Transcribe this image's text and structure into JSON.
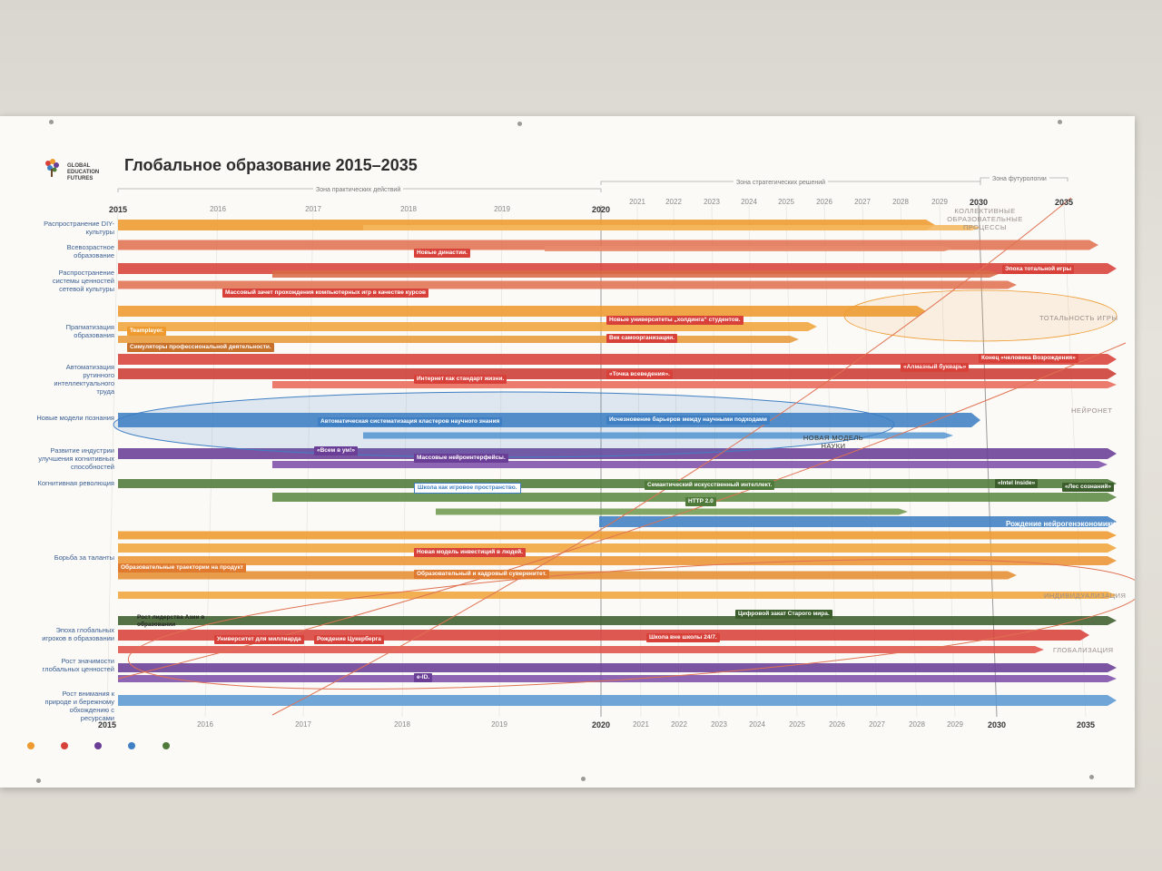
{
  "title": "Глобальное образование 2015–2035",
  "logo_text": [
    "GLOBAL",
    "EDUCATION",
    "FUTURES"
  ],
  "zones": [
    "Зона практических действий",
    "Зона стратегических решений",
    "Зона футурологии"
  ],
  "years_top": [
    "2015",
    "2016",
    "2017",
    "2018",
    "2019",
    "2020",
    "2021",
    "2022",
    "2023",
    "2024",
    "2025",
    "2026",
    "2027",
    "2028",
    "2029",
    "2030",
    "2035"
  ],
  "years_bottom": [
    "2015",
    "2016",
    "2017",
    "2018",
    "2019",
    "2020",
    "2021",
    "2022",
    "2023",
    "2024",
    "2025",
    "2026",
    "2027",
    "2028",
    "2029",
    "2030",
    "2035"
  ],
  "rows": [
    "Распространение DIY-культуры",
    "Всевозрастное образование",
    "Распространение системы ценностей сетевой культуры",
    "Прагматизация образования",
    "Автоматизация рутинного интеллектуального труда",
    "Новые модели познания",
    "Развитие индустрии улучшения когнитивных способностей",
    "Когнитивная революция",
    "Борьба за таланты",
    "Эпоха глобальных игроков в образовании",
    "Рост значимости глобальных ценностей",
    "Рост внимания к природе и бережному обхождению с ресурсами"
  ],
  "events": {
    "new_dinasties": "Новые династии.",
    "mass_gaming": "Массовый зачет прохождения компьютерных игр в качестве курсов",
    "teamplayer": "Teamplayer.",
    "simulators": "Симуляторы профессиональной деятельности.",
    "new_universities": "Новые университеты „холдинга“ студентов.",
    "self_organization": "Век самоорганизации.",
    "internet_standard": "Интернет как стандарт жизни.",
    "point_everywhere": "«Точка всеведения».",
    "auto_clusters": "Автоматическая систематизация кластеров научного знания",
    "barriers": "Исчезновение барьеров между научными подходами",
    "all_in_mind": "«Всем в ум!»",
    "mass_neuro": "Массовые нейроинтерфейсы.",
    "school_game": "Школа как игровое пространство.",
    "semantic_ai": "Семантический искусственный интеллект.",
    "http2": "HTTP 2.0",
    "intel_inside": "«Intel Inside»",
    "forest_mind": "«Лес сознаний»",
    "neuroeconomy_birth": "Рождение нейрогенэкономики",
    "edu_trajectories": "Образовательные траектории на продукт",
    "new_investment": "Новая модель инвестиций в людей.",
    "edu_sovereignty": "Образовательный и кадровый суверенитет.",
    "asia_rise": "Рост лидерства Азии в образовании",
    "university_billion": "Университет для миллиарда",
    "cyber_birth": "Рождение Цукерберга",
    "school_24": "Школа вне школы 24/7.",
    "digital_world": "Цифровой закат Старого мира.",
    "eid": "e-ID.",
    "alphabet_diamond": "«Алмазный букварь»",
    "end_renaissance": "Конец «человека Возрождения»",
    "total_game": "Эпоха тотальной игры"
  },
  "notes": {
    "collective": "КОЛЛЕКТИВНЫЕ ОБРАЗОВАТЕЛЬНЫЕ ПРОЦЕССЫ",
    "totality": "ТОТАЛЬНОСТЬ ИГРЫ",
    "neuronet": "НЕЙРОНЕТ",
    "new_science": "НОВАЯ МОДЕЛЬ НАУКИ",
    "individualization": "ИНДИВИДУАЛИЗАЦИЯ",
    "globalization": "ГЛОБАЛИЗАЦИЯ"
  },
  "colors": {
    "orange": "#ee9a2e",
    "red": "#d8413a",
    "salmon": "#e07252",
    "blue": "#3f7fc4",
    "lightblue": "#5b9ad3",
    "purple": "#6a3d96",
    "green": "#4f7a3a",
    "darkgreen": "#3c5e2c",
    "rowlabel": "#3a5e93"
  }
}
